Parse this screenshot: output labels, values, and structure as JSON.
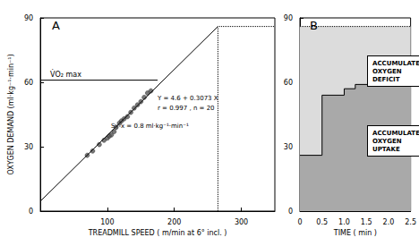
{
  "chart_data": [
    {
      "type": "scatter",
      "title": "A",
      "x_label": "TREADMILL SPEED ( m/min at 6° incl. )",
      "y_label": "OXYGEN DEMAND (ml·kg⁻¹·min⁻¹)",
      "x": [
        70,
        78,
        88,
        95,
        100,
        103,
        106,
        110,
        113,
        118,
        121,
        125,
        130,
        135,
        140,
        145,
        150,
        155,
        160,
        165
      ],
      "values": [
        26,
        28,
        31,
        33,
        34,
        35,
        35.5,
        37,
        39,
        41,
        42,
        43,
        44,
        46,
        48,
        49.5,
        51,
        53,
        55,
        56
      ],
      "color": "#555555",
      "marker": "circle",
      "xlim": [
        0,
        350
      ],
      "xticks": [
        100,
        200,
        300
      ],
      "ylim": [
        0,
        90
      ],
      "yticks": [
        0,
        30,
        60,
        90
      ],
      "fit": {
        "x": [
          0,
          265
        ],
        "values": [
          4.6,
          86
        ],
        "color": "#000000"
      },
      "vo2max": {
        "label": "V̇O₂ max",
        "value": 61,
        "x": [
          0,
          175
        ]
      },
      "demand_line": {
        "x": 265,
        "value": 86,
        "line_style": "dotted"
      },
      "annotations": [
        "Y = 4.6 + 0.3073 X",
        "r = 0.997 , n = 20",
        "Sy-x = 0.8 ml·kg⁻¹·min⁻¹"
      ]
    },
    {
      "type": "area",
      "title": "B",
      "x_label": "TIME ( min )",
      "xlim": [
        0,
        2.5
      ],
      "xticks": [
        0,
        0.5,
        {
          "value": 1,
          "label": "1.0"
        },
        1.5,
        {
          "value": 2,
          "label": "2.0"
        },
        2.5
      ],
      "ylim": [
        0,
        90
      ],
      "yticks": [
        0,
        30,
        60,
        90
      ],
      "series": [
        {
          "name": "ACCUMULATED OXYGEN DEFICIT",
          "x": [
            0,
            2.5
          ],
          "values": [
            86,
            86
          ],
          "color": "#dcdcdc",
          "line_style": "dotted"
        },
        {
          "name": "ACCUMULATED OXYGEN UPTAKE",
          "x": [
            0,
            0.5,
            1,
            1.25,
            2.5
          ],
          "values": [
            26,
            54,
            57,
            59,
            59
          ],
          "color": "#a9a9a9",
          "line_style": "step"
        }
      ]
    }
  ]
}
